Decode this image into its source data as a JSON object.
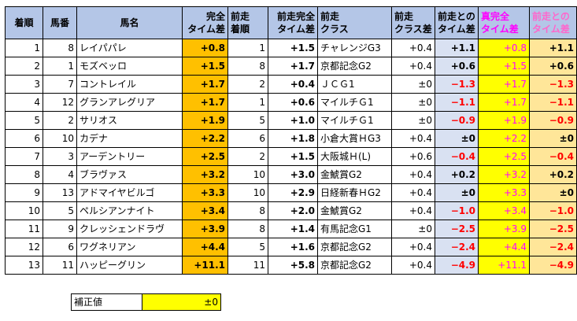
{
  "headers": [
    [
      "着順"
    ],
    [
      "馬番"
    ],
    [
      "馬名"
    ],
    [
      "完全",
      "タイム差"
    ],
    [
      "前走",
      "着順"
    ],
    [
      "前走完全",
      "タイム差"
    ],
    [
      "前走",
      "クラス"
    ],
    [
      "前走",
      "クラス差"
    ],
    [
      "前走との",
      "タイム差"
    ],
    [
      "真完全",
      "タイム差"
    ],
    [
      "前走との",
      "タイム差"
    ]
  ],
  "rows": [
    {
      "rank": "1",
      "num": "8",
      "name": "レイパパレ",
      "time": "+0.8",
      "prev_rank": "1",
      "prev_time": "+1.5",
      "prev_class": "チャレンジG3",
      "class_diff": "+0.4",
      "diff_prev": "+1.1",
      "true_time": "+0.8",
      "diff_prev2": "+1.1"
    },
    {
      "rank": "2",
      "num": "1",
      "name": "モズベッロ",
      "time": "+1.5",
      "prev_rank": "8",
      "prev_time": "+1.7",
      "prev_class": "京都記念G2",
      "class_diff": "+0.4",
      "diff_prev": "+0.6",
      "true_time": "+1.5",
      "diff_prev2": "+0.6"
    },
    {
      "rank": "3",
      "num": "7",
      "name": "コントレイル",
      "time": "+1.7",
      "prev_rank": "2",
      "prev_time": "+0.4",
      "prev_class": "ＪＣＧ1",
      "class_diff": "±0",
      "diff_prev": "−1.3",
      "true_time": "+1.7",
      "diff_prev2": "−1.3"
    },
    {
      "rank": "4",
      "num": "12",
      "name": "グランアレグリア",
      "time": "+1.7",
      "prev_rank": "1",
      "prev_time": "+0.6",
      "prev_class": "マイルチＧ1",
      "class_diff": "±0",
      "diff_prev": "−1.1",
      "true_time": "+1.7",
      "diff_prev2": "−1.1"
    },
    {
      "rank": "5",
      "num": "2",
      "name": "サリオス",
      "time": "+1.9",
      "prev_rank": "5",
      "prev_time": "+1.0",
      "prev_class": "マイルチＧ1",
      "class_diff": "±0",
      "diff_prev": "−0.9",
      "true_time": "+1.9",
      "diff_prev2": "−0.9"
    },
    {
      "rank": "6",
      "num": "10",
      "name": "カデナ",
      "time": "+2.2",
      "prev_rank": "6",
      "prev_time": "+1.8",
      "prev_class": "小倉大賞ＨG3",
      "class_diff": "+0.4",
      "diff_prev": "±0",
      "true_time": "+2.2",
      "diff_prev2": "±0"
    },
    {
      "rank": "7",
      "num": "3",
      "name": "アーデントリー",
      "time": "+2.5",
      "prev_rank": "2",
      "prev_time": "+1.5",
      "prev_class": "大阪城Ｈ(L)",
      "class_diff": "+0.6",
      "diff_prev": "−0.4",
      "true_time": "+2.5",
      "diff_prev2": "−0.4"
    },
    {
      "rank": "8",
      "num": "4",
      "name": "ブラヴァス",
      "time": "+3.2",
      "prev_rank": "10",
      "prev_time": "+3.0",
      "prev_class": "金鯱賞G2",
      "class_diff": "+0.4",
      "diff_prev": "+0.2",
      "true_time": "+3.2",
      "diff_prev2": "+0.2"
    },
    {
      "rank": "9",
      "num": "13",
      "name": "アドマイヤビルゴ",
      "time": "+3.3",
      "prev_rank": "10",
      "prev_time": "+2.9",
      "prev_class": "日経新春ＨG2",
      "class_diff": "+0.4",
      "diff_prev": "±0",
      "true_time": "+3.3",
      "diff_prev2": "±0"
    },
    {
      "rank": "10",
      "num": "5",
      "name": "ペルシアンナイト",
      "time": "+3.4",
      "prev_rank": "8",
      "prev_time": "+2.0",
      "prev_class": "金鯱賞G2",
      "class_diff": "+0.4",
      "diff_prev": "−1.0",
      "true_time": "+3.4",
      "diff_prev2": "−1.0"
    },
    {
      "rank": "11",
      "num": "9",
      "name": "クレッシェンドラヴ",
      "time": "+3.9",
      "prev_rank": "8",
      "prev_time": "+1.4",
      "prev_class": "有馬記念G1",
      "class_diff": "±0",
      "diff_prev": "−2.5",
      "true_time": "+3.9",
      "diff_prev2": "−2.5"
    },
    {
      "rank": "12",
      "num": "6",
      "name": "ワグネリアン",
      "time": "+4.4",
      "prev_rank": "5",
      "prev_time": "+1.6",
      "prev_class": "京都記念G2",
      "class_diff": "+0.4",
      "diff_prev": "−2.4",
      "true_time": "+4.4",
      "diff_prev2": "−2.4"
    },
    {
      "rank": "13",
      "num": "11",
      "name": "ハッピーグリン",
      "time": "+11.1",
      "prev_rank": "11",
      "prev_time": "+5.8",
      "prev_class": "京都記念G2",
      "class_diff": "+0.4",
      "diff_prev": "−4.9",
      "true_time": "+11.1",
      "diff_prev2": "−4.9"
    }
  ],
  "correction": {
    "label": "補正値",
    "value": "±0"
  },
  "colors": {
    "header": "#b4c6e7",
    "orange": "#ffc000",
    "lavender": "#d9e1f2",
    "yellow": "#ffff00",
    "peach": "#ffe699",
    "negative": "#ff0000",
    "magenta": "#ff00ff"
  }
}
